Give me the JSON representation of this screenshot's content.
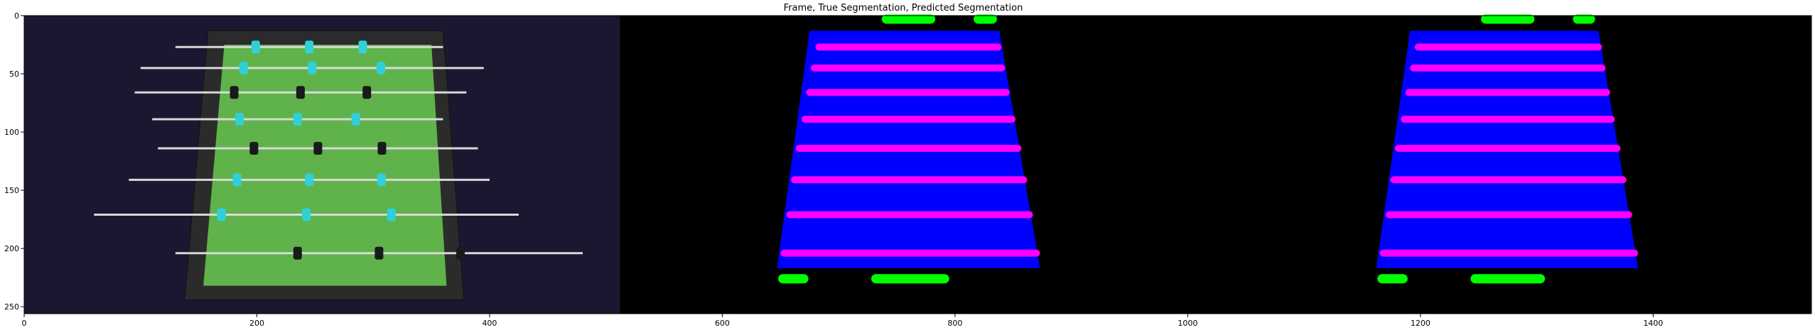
{
  "chart_data": {
    "type": "image",
    "title": "Frame, True Segmentation, Predicted Segmentation",
    "xlabel": "",
    "ylabel": "",
    "xlim": [
      0,
      1536
    ],
    "ylim": [
      256,
      0
    ],
    "x_ticks": [
      0,
      200,
      400,
      600,
      800,
      1000,
      1200,
      1400
    ],
    "y_ticks": [
      0,
      50,
      100,
      150,
      200,
      250
    ],
    "grid": false,
    "panels": [
      {
        "name": "Frame",
        "x_range": [
          0,
          512
        ]
      },
      {
        "name": "True Segmentation",
        "x_range": [
          512,
          1024
        ]
      },
      {
        "name": "Predicted Segmentation",
        "x_range": [
          1024,
          1536
        ]
      }
    ],
    "segmentation_classes": [
      {
        "class": "table",
        "color": "#0000ff"
      },
      {
        "class": "rods",
        "color": "#ff00ff"
      },
      {
        "class": "goal",
        "color": "#00ff00"
      }
    ],
    "true_segmentation": {
      "table": [
        [
          675,
          13
        ],
        [
          838,
          13
        ],
        [
          873,
          217
        ],
        [
          647,
          217
        ]
      ],
      "rods": [
        {
          "y": 27,
          "x0": 680,
          "x1": 840
        },
        {
          "y": 45,
          "x0": 676,
          "x1": 843
        },
        {
          "y": 66,
          "x0": 672,
          "x1": 847
        },
        {
          "y": 89,
          "x0": 668,
          "x1": 852
        },
        {
          "y": 114,
          "x0": 663,
          "x1": 857
        },
        {
          "y": 141,
          "x0": 659,
          "x1": 862
        },
        {
          "y": 171,
          "x0": 655,
          "x1": 867
        },
        {
          "y": 204,
          "x0": 650,
          "x1": 873
        }
      ],
      "goals": [
        {
          "x0": 737,
          "x1": 783,
          "y": 3
        },
        {
          "x0": 816,
          "x1": 836,
          "y": 3
        },
        {
          "x0": 648,
          "x1": 674,
          "y": 226
        },
        {
          "x0": 728,
          "x1": 795,
          "y": 226
        }
      ]
    },
    "predicted_segmentation": {
      "table": [
        [
          1191,
          13
        ],
        [
          1353,
          13
        ],
        [
          1387,
          217
        ],
        [
          1162,
          217
        ]
      ],
      "rods": [
        {
          "y": 27,
          "x0": 1195,
          "x1": 1356
        },
        {
          "y": 45,
          "x0": 1191,
          "x1": 1359
        },
        {
          "y": 66,
          "x0": 1187,
          "x1": 1363
        },
        {
          "y": 89,
          "x0": 1183,
          "x1": 1367
        },
        {
          "y": 114,
          "x0": 1178,
          "x1": 1372
        },
        {
          "y": 141,
          "x0": 1174,
          "x1": 1377
        },
        {
          "y": 171,
          "x0": 1170,
          "x1": 1382
        },
        {
          "y": 204,
          "x0": 1165,
          "x1": 1387
        }
      ],
      "goals": [
        {
          "x0": 1252,
          "x1": 1298,
          "y": 3
        },
        {
          "x0": 1331,
          "x1": 1350,
          "y": 3
        },
        {
          "x0": 1163,
          "x1": 1189,
          "y": 226
        },
        {
          "x0": 1243,
          "x1": 1307,
          "y": 226
        }
      ]
    },
    "frame_scene": {
      "table": [
        [
          158,
          13
        ],
        [
          360,
          13
        ],
        [
          378,
          244
        ],
        [
          138,
          244
        ]
      ],
      "rods": [
        {
          "y": 27,
          "x0": 130,
          "x1": 360
        },
        {
          "y": 45,
          "x0": 100,
          "x1": 395
        },
        {
          "y": 66,
          "x0": 95,
          "x1": 380
        },
        {
          "y": 89,
          "x0": 110,
          "x1": 360
        },
        {
          "y": 114,
          "x0": 115,
          "x1": 390
        },
        {
          "y": 141,
          "x0": 90,
          "x1": 400
        },
        {
          "y": 171,
          "x0": 60,
          "x1": 425
        },
        {
          "y": 204,
          "x0": 130,
          "x1": 480
        }
      ]
    },
    "colors": {
      "background": "#000000",
      "frame_carpet": "#1c1630",
      "frame_field": "#5fb34a"
    }
  }
}
